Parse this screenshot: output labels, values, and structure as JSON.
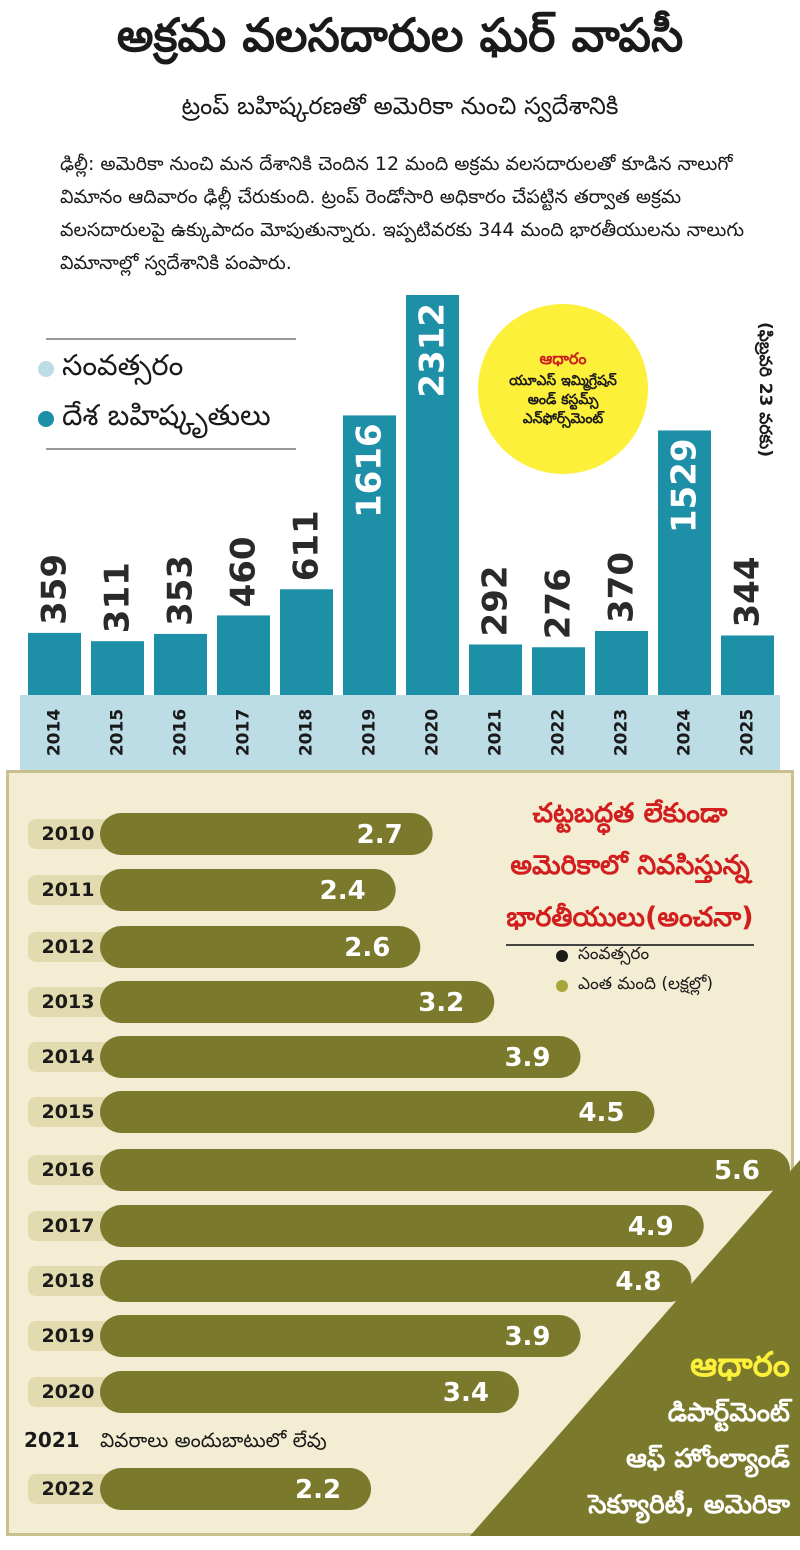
{
  "title": "అక్రమ వలసదారుల ఘర్ వాపసీ",
  "subtitle": "ట్రంప్ బహిష్కరణతో అమెరికా నుంచి స్వదేశానికి",
  "intro": "ఢిల్లీ: అమెరికా నుంచి మన దేశానికి చెందిన 12 మంది అక్రమ వలసదారులతో కూడిన నాలుగో విమానం ఆదివారం ఢిల్లీ చేరుకుంది. ట్రంప్ రెండోసారి అధికారం చేపట్టిన తర్వాత అక్రమ వలసదారులపై ఉక్కుపాదం మోపుతున్నారు. ఇప్పటివరకు 344 మంది భారతీయులను నాలుగు విమానాల్లో స్వదేశానికి పంపారు.",
  "top_legend": {
    "year": "సంవత్సరం",
    "deportations": "దేశ బహిష్కృతులు"
  },
  "top_source": {
    "heading": "ఆధారం",
    "line1": "యూఎస్ ఇమ్మిగ్రేషన్",
    "line2": "అండ్ కస్టమ్స్",
    "line3": "ఎన్‌ఫోర్స్‌మెంట్"
  },
  "top_note": "(ఫిబ్రవరి 23 వరకు)",
  "bottom_title": {
    "line1": "చట్టబద్ధత లేకుండా",
    "line2": "అమెరికాలో నివసిస్తున్న",
    "line3": "భారతీయులు(అంచనా)"
  },
  "bottom_legend": {
    "year": "సంవత్సరం",
    "count": "ఎంత మంది (లక్షల్లో)"
  },
  "bottom_source": {
    "heading": "ఆధారం",
    "line1": "డిపార్ట్‌మెంట్",
    "line2": "ఆఫ్ హోంల్యాండ్",
    "line3": "సెక్యూరిటీ, అమెరికా"
  },
  "na_row": {
    "year": "2021",
    "text": "వివరాలు అందుబాటులో లేవు"
  },
  "colors": {
    "teal": "#1d8fa6",
    "year_band": "#bcdce6",
    "olive": "#7b7a2c",
    "source_yellow": "#fdf03a",
    "red": "#d21e1e"
  },
  "chart_data": [
    {
      "type": "bar",
      "categories": [
        "2014",
        "2015",
        "2016",
        "2017",
        "2018",
        "2019",
        "2020",
        "2021",
        "2022",
        "2023",
        "2024",
        "2025"
      ],
      "values": [
        359,
        311,
        353,
        460,
        611,
        1616,
        2312,
        292,
        276,
        370,
        1529,
        344
      ],
      "series": [
        {
          "name": "దేశ బహిష్కృతులు",
          "values": [
            359,
            311,
            353,
            460,
            611,
            1616,
            2312,
            292,
            276,
            370,
            1529,
            344
          ]
        }
      ],
      "ylim": [
        0,
        2312
      ]
    },
    {
      "type": "bar",
      "orientation": "horizontal",
      "categories": [
        "2010",
        "2011",
        "2012",
        "2013",
        "2014",
        "2015",
        "2016",
        "2017",
        "2018",
        "2019",
        "2020",
        "2022"
      ],
      "values": [
        2.7,
        2.4,
        2.6,
        3.2,
        3.9,
        4.5,
        5.6,
        4.9,
        4.8,
        3.9,
        3.4,
        2.2
      ],
      "value_labels": [
        "2.7",
        "2.4",
        "2.6",
        "3.2",
        "3.9",
        "4.5",
        "5.6",
        "4.9",
        "4.8",
        "3.9",
        "3.4",
        "2.2"
      ],
      "series": [
        {
          "name": "ఎంత మంది (లక్షల్లో)",
          "values": [
            2.7,
            2.4,
            2.6,
            3.2,
            3.9,
            4.5,
            5.6,
            4.9,
            4.8,
            3.9,
            3.4,
            2.2
          ]
        }
      ],
      "xlim": [
        0,
        5.6
      ]
    }
  ]
}
